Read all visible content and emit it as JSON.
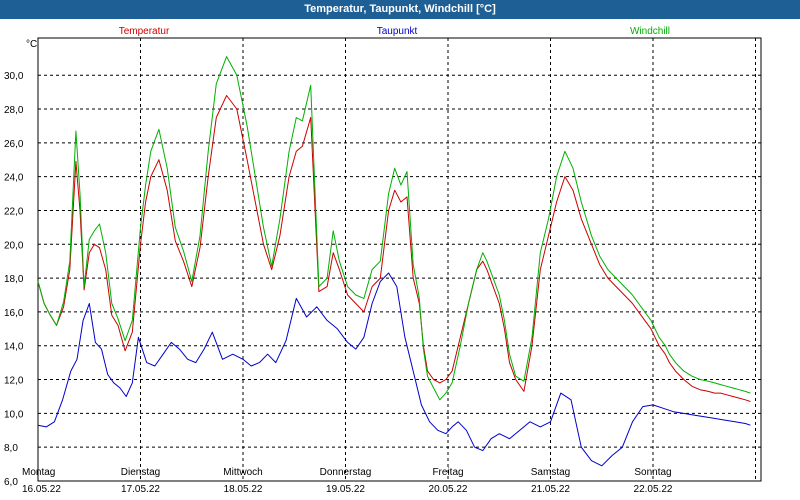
{
  "window": {
    "title": "Temperatur, Taupunkt, Windchill [°C]"
  },
  "chart_data": {
    "type": "line",
    "title": "Temperatur, Taupunkt, Windchill [°C]",
    "ylabel": "°C",
    "ylim": [
      6.0,
      32.2
    ],
    "xlim": [
      0,
      7
    ],
    "yticks": [
      "6,0",
      "8,0",
      "10,0",
      "12,0",
      "14,0",
      "16,0",
      "18,0",
      "20,0",
      "22,0",
      "24,0",
      "26,0",
      "28,0",
      "30,0"
    ],
    "ytick_values": [
      6,
      8,
      10,
      12,
      14,
      16,
      18,
      20,
      22,
      24,
      26,
      28,
      30
    ],
    "xticks": [
      {
        "day": "Montag",
        "date": "16.05.22",
        "x": 0
      },
      {
        "day": "Dienstag",
        "date": "17.05.22",
        "x": 1
      },
      {
        "day": "Mittwoch",
        "date": "18.05.22",
        "x": 2
      },
      {
        "day": "Donnerstag",
        "date": "19.05.22",
        "x": 3
      },
      {
        "day": "Freitag",
        "date": "20.05.22",
        "x": 4
      },
      {
        "day": "Samstag",
        "date": "21.05.22",
        "x": 5
      },
      {
        "day": "Sonntag",
        "date": "22.05.22",
        "x": 6
      }
    ],
    "grid": true,
    "legend_position": "top",
    "series": [
      {
        "name": "Temperatur",
        "color": "#cc0000",
        "x": [
          0,
          0.06,
          0.12,
          0.18,
          0.25,
          0.31,
          0.37,
          0.41,
          0.45,
          0.5,
          0.55,
          0.6,
          0.66,
          0.72,
          0.78,
          0.85,
          0.92,
          1.0,
          1.05,
          1.1,
          1.18,
          1.26,
          1.34,
          1.42,
          1.5,
          1.58,
          1.66,
          1.74,
          1.84,
          1.94,
          2.04,
          2.12,
          2.2,
          2.28,
          2.36,
          2.45,
          2.52,
          2.58,
          2.66,
          2.74,
          2.82,
          2.88,
          2.94,
          3.02,
          3.1,
          3.18,
          3.26,
          3.34,
          3.42,
          3.48,
          3.54,
          3.6,
          3.66,
          3.7,
          3.72,
          3.76,
          3.8,
          3.86,
          3.92,
          3.98,
          4.04,
          4.12,
          4.2,
          4.28,
          4.34,
          4.38,
          4.44,
          4.5,
          4.55,
          4.6,
          4.66,
          4.74,
          4.82,
          4.9,
          4.98,
          5.06,
          5.14,
          5.22,
          5.3,
          5.4,
          5.48,
          5.56,
          5.64,
          5.72,
          5.8,
          5.86,
          5.92,
          5.98,
          6.02,
          6.06,
          6.12,
          6.16,
          6.22,
          6.3,
          6.38,
          6.46,
          6.54,
          6.6,
          6.66,
          6.72,
          6.78,
          6.84,
          6.9,
          6.95
        ],
        "values": [
          17.8,
          16.5,
          15.8,
          15.2,
          16.3,
          18.5,
          24.9,
          22.0,
          17.3,
          19.5,
          20.0,
          19.8,
          18.5,
          15.8,
          15.2,
          13.7,
          14.8,
          20.0,
          22.5,
          24.0,
          25.0,
          23.2,
          20.2,
          19.0,
          17.5,
          19.8,
          24.0,
          27.5,
          28.8,
          28.0,
          25.0,
          22.5,
          20.0,
          18.5,
          20.5,
          24.0,
          25.5,
          25.8,
          27.5,
          17.2,
          17.5,
          19.5,
          18.5,
          17.0,
          16.5,
          16.0,
          17.5,
          18.0,
          22.0,
          23.2,
          22.5,
          22.8,
          18.0,
          17.0,
          16.5,
          14.0,
          12.5,
          12.0,
          11.8,
          12.0,
          12.5,
          14.5,
          16.5,
          18.5,
          19.0,
          18.5,
          17.5,
          16.5,
          15.0,
          13.0,
          12.0,
          11.3,
          14.0,
          18.5,
          20.5,
          22.5,
          24.0,
          23.2,
          21.5,
          20.0,
          18.8,
          18.0,
          17.5,
          17.0,
          16.5,
          16.0,
          15.5,
          15.0,
          14.5,
          14.0,
          13.5,
          13.0,
          12.5,
          12.0,
          11.6,
          11.4,
          11.3,
          11.2,
          11.2,
          11.1,
          11.0,
          10.9,
          10.8,
          10.7
        ]
      },
      {
        "name": "Taupunkt",
        "color": "#0000cc",
        "x": [
          0,
          0.08,
          0.16,
          0.24,
          0.32,
          0.38,
          0.44,
          0.5,
          0.56,
          0.62,
          0.68,
          0.74,
          0.8,
          0.86,
          0.92,
          0.98,
          1.06,
          1.14,
          1.22,
          1.3,
          1.38,
          1.46,
          1.54,
          1.62,
          1.7,
          1.8,
          1.9,
          2.0,
          2.08,
          2.16,
          2.24,
          2.32,
          2.42,
          2.52,
          2.62,
          2.72,
          2.82,
          2.92,
          3.02,
          3.1,
          3.18,
          3.26,
          3.34,
          3.42,
          3.5,
          3.58,
          3.66,
          3.74,
          3.82,
          3.9,
          3.98,
          4.04,
          4.1,
          4.18,
          4.26,
          4.34,
          4.42,
          4.5,
          4.6,
          4.7,
          4.8,
          4.9,
          5.0,
          5.1,
          5.2,
          5.3,
          5.4,
          5.5,
          5.6,
          5.7,
          5.8,
          5.9,
          6.0,
          6.1,
          6.2,
          6.3,
          6.4,
          6.5,
          6.6,
          6.7,
          6.8,
          6.9,
          6.95
        ],
        "values": [
          9.3,
          9.2,
          9.5,
          10.8,
          12.5,
          13.2,
          15.5,
          16.5,
          14.2,
          13.8,
          12.3,
          11.8,
          11.5,
          11.0,
          11.8,
          14.5,
          13.0,
          12.8,
          13.5,
          14.2,
          13.8,
          13.2,
          13.0,
          13.8,
          14.8,
          13.2,
          13.5,
          13.2,
          12.8,
          13.0,
          13.5,
          13.0,
          14.3,
          16.8,
          15.7,
          16.3,
          15.5,
          15.0,
          14.2,
          13.8,
          14.5,
          16.5,
          17.8,
          18.3,
          17.5,
          14.5,
          12.5,
          10.5,
          9.5,
          9.0,
          8.8,
          9.2,
          9.5,
          9.0,
          8.0,
          7.8,
          8.5,
          8.8,
          8.5,
          9.0,
          9.5,
          9.2,
          9.5,
          11.2,
          10.8,
          8.0,
          7.2,
          6.9,
          7.5,
          8.0,
          9.5,
          10.4,
          10.5,
          10.3,
          10.1,
          10.0,
          9.9,
          9.8,
          9.7,
          9.6,
          9.5,
          9.4,
          9.3
        ]
      },
      {
        "name": "Windchill",
        "color": "#00b000",
        "x": [
          0,
          0.06,
          0.12,
          0.18,
          0.25,
          0.31,
          0.37,
          0.41,
          0.45,
          0.5,
          0.55,
          0.6,
          0.66,
          0.72,
          0.78,
          0.85,
          0.92,
          1.0,
          1.05,
          1.1,
          1.18,
          1.26,
          1.34,
          1.42,
          1.5,
          1.58,
          1.66,
          1.74,
          1.84,
          1.94,
          2.04,
          2.12,
          2.2,
          2.28,
          2.36,
          2.45,
          2.52,
          2.58,
          2.66,
          2.74,
          2.82,
          2.88,
          2.94,
          3.02,
          3.1,
          3.18,
          3.26,
          3.34,
          3.42,
          3.48,
          3.54,
          3.6,
          3.66,
          3.7,
          3.72,
          3.76,
          3.8,
          3.86,
          3.92,
          3.98,
          4.04,
          4.12,
          4.2,
          4.28,
          4.34,
          4.38,
          4.44,
          4.5,
          4.55,
          4.6,
          4.66,
          4.74,
          4.82,
          4.9,
          4.98,
          5.06,
          5.14,
          5.22,
          5.3,
          5.4,
          5.48,
          5.56,
          5.64,
          5.72,
          5.8,
          5.86,
          5.92,
          5.98,
          6.02,
          6.06,
          6.12,
          6.16,
          6.22,
          6.3,
          6.38,
          6.46,
          6.54,
          6.6,
          6.66,
          6.72,
          6.78,
          6.84,
          6.9,
          6.95
        ],
        "values": [
          17.8,
          16.5,
          15.8,
          15.2,
          16.6,
          19.0,
          26.7,
          23.0,
          17.5,
          20.3,
          20.8,
          21.2,
          19.5,
          16.5,
          15.6,
          14.3,
          15.5,
          21.0,
          23.5,
          25.5,
          26.8,
          24.5,
          21.0,
          19.6,
          17.8,
          20.5,
          25.5,
          29.5,
          31.1,
          30.0,
          27.0,
          24.0,
          21.0,
          18.7,
          21.5,
          25.5,
          27.5,
          27.3,
          29.4,
          17.5,
          18.0,
          20.8,
          19.0,
          17.5,
          17.0,
          16.8,
          18.5,
          19.0,
          23.0,
          24.5,
          23.5,
          24.3,
          18.8,
          17.5,
          16.8,
          13.8,
          12.2,
          11.5,
          10.8,
          11.2,
          11.8,
          14.0,
          16.5,
          18.5,
          19.5,
          19.0,
          18.0,
          17.0,
          15.5,
          13.5,
          12.2,
          11.9,
          14.5,
          19.5,
          21.5,
          24.0,
          25.5,
          24.5,
          22.5,
          20.5,
          19.3,
          18.5,
          18.0,
          17.5,
          17.0,
          16.5,
          16.0,
          15.5,
          15.0,
          14.5,
          14.0,
          13.5,
          13.0,
          12.5,
          12.2,
          12.0,
          11.9,
          11.8,
          11.7,
          11.6,
          11.5,
          11.4,
          11.3,
          11.2
        ]
      }
    ]
  }
}
